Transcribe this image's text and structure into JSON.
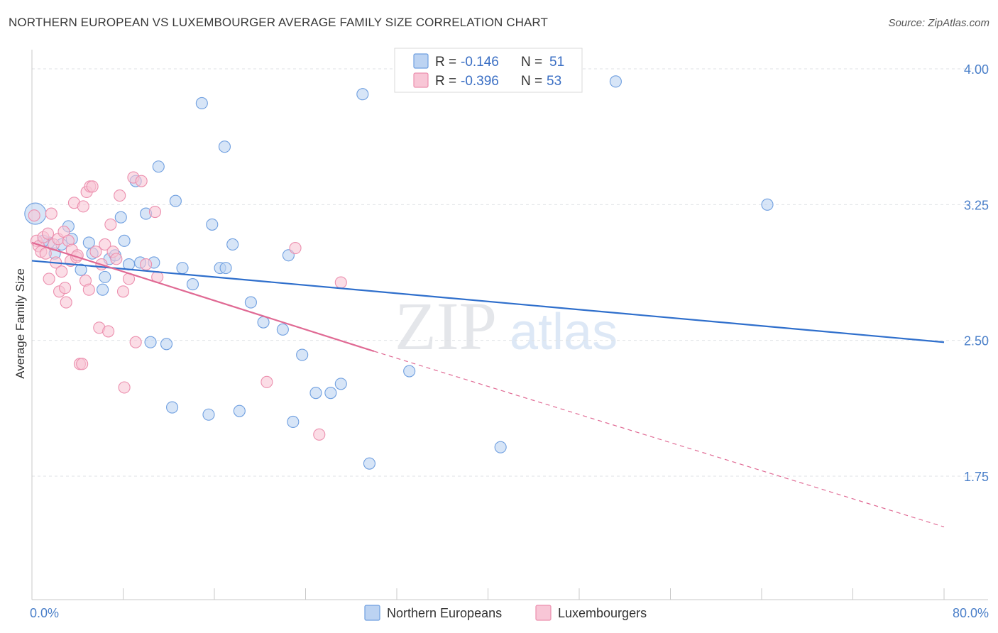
{
  "header": {
    "title": "NORTHERN EUROPEAN VS LUXEMBOURGER AVERAGE FAMILY SIZE CORRELATION CHART",
    "source": "Source: ZipAtlas.com"
  },
  "watermark": {
    "part1": "ZIP",
    "part2": "atlas"
  },
  "stats_box": {
    "rows": [
      {
        "r_label": "R =",
        "r_value": "-0.146",
        "n_label": "N =",
        "n_value": "51"
      },
      {
        "r_label": "R =",
        "r_value": "-0.396",
        "n_label": "N =",
        "n_value": "53"
      }
    ]
  },
  "chart_data": {
    "type": "scatter",
    "title": "NORTHERN EUROPEAN VS LUXEMBOURGER AVERAGE FAMILY SIZE CORRELATION CHART",
    "xlabel": "",
    "ylabel": "Average Family Size",
    "xlim": [
      0,
      80
    ],
    "ylim": [
      1.0,
      4.1
    ],
    "x_tick_labels": [
      {
        "value": 0,
        "label": "0.0%"
      },
      {
        "value": 80,
        "label": "80.0%"
      }
    ],
    "x_minor_ticks": [
      0,
      8,
      16,
      24,
      32,
      40,
      48,
      56,
      64,
      72,
      80
    ],
    "y_ticks": [
      {
        "value": 4.0,
        "label": "4.00"
      },
      {
        "value": 3.25,
        "label": "3.25"
      },
      {
        "value": 2.5,
        "label": "2.50"
      },
      {
        "value": 1.75,
        "label": "1.75"
      }
    ],
    "grid": true,
    "legend_position": "bottom-center",
    "series": [
      {
        "name": "Northern Europeans",
        "color": "#6f9fe0",
        "fill": "#bcd3f2",
        "trend_color": "#2f6fcc",
        "trend": {
          "x0": 0,
          "y0": 2.94,
          "x1": 80,
          "y1": 2.49
        },
        "points": [
          [
            0.3,
            3.2
          ],
          [
            1.5,
            3.04
          ],
          [
            2.0,
            2.98
          ],
          [
            3.2,
            3.13
          ],
          [
            3.5,
            3.06
          ],
          [
            5.0,
            3.04
          ],
          [
            5.3,
            2.98
          ],
          [
            6.2,
            2.78
          ],
          [
            6.4,
            2.85
          ],
          [
            6.8,
            2.95
          ],
          [
            7.3,
            2.97
          ],
          [
            7.8,
            3.18
          ],
          [
            8.1,
            3.05
          ],
          [
            8.5,
            2.92
          ],
          [
            9.1,
            3.38
          ],
          [
            10.0,
            3.2
          ],
          [
            10.4,
            2.49
          ],
          [
            10.7,
            2.93
          ],
          [
            11.1,
            3.46
          ],
          [
            11.8,
            2.48
          ],
          [
            12.3,
            2.13
          ],
          [
            12.6,
            3.27
          ],
          [
            13.2,
            2.9
          ],
          [
            14.1,
            2.81
          ],
          [
            14.9,
            3.81
          ],
          [
            15.5,
            2.09
          ],
          [
            15.8,
            3.14
          ],
          [
            16.5,
            2.9
          ],
          [
            16.9,
            3.57
          ],
          [
            17.6,
            3.03
          ],
          [
            18.2,
            2.11
          ],
          [
            19.2,
            2.71
          ],
          [
            20.3,
            2.6
          ],
          [
            22.0,
            2.56
          ],
          [
            22.5,
            2.97
          ],
          [
            22.9,
            2.05
          ],
          [
            23.7,
            2.42
          ],
          [
            24.9,
            2.21
          ],
          [
            26.2,
            2.21
          ],
          [
            27.1,
            2.26
          ],
          [
            29.0,
            3.86
          ],
          [
            29.6,
            1.82
          ],
          [
            33.1,
            2.33
          ],
          [
            41.1,
            1.91
          ],
          [
            51.2,
            3.93
          ],
          [
            64.5,
            3.25
          ],
          [
            1.0,
            3.05
          ],
          [
            2.6,
            3.03
          ],
          [
            4.3,
            2.89
          ],
          [
            9.5,
            2.93
          ],
          [
            17.0,
            2.9
          ]
        ]
      },
      {
        "name": "Luxembourgers",
        "color": "#ec8fae",
        "fill": "#f8c6d6",
        "trend_color": "#e06a94",
        "trend": {
          "x0": 0,
          "y0": 3.04,
          "x1": 30,
          "y1": 2.44
        },
        "trend_extension": {
          "x0": 30,
          "y0": 2.44,
          "x1": 80,
          "y1": 1.47
        },
        "points": [
          [
            0.2,
            3.19
          ],
          [
            0.4,
            3.05
          ],
          [
            0.6,
            3.02
          ],
          [
            0.8,
            2.99
          ],
          [
            1.0,
            3.07
          ],
          [
            1.2,
            2.98
          ],
          [
            1.4,
            3.09
          ],
          [
            1.5,
            2.84
          ],
          [
            1.7,
            3.2
          ],
          [
            1.9,
            3.03
          ],
          [
            2.1,
            2.93
          ],
          [
            2.3,
            3.06
          ],
          [
            2.4,
            2.77
          ],
          [
            2.6,
            2.88
          ],
          [
            2.8,
            3.1
          ],
          [
            2.9,
            2.79
          ],
          [
            3.0,
            2.71
          ],
          [
            3.2,
            3.05
          ],
          [
            3.4,
            2.94
          ],
          [
            3.5,
            3.0
          ],
          [
            3.7,
            3.26
          ],
          [
            3.9,
            2.96
          ],
          [
            4.0,
            2.97
          ],
          [
            4.2,
            2.37
          ],
          [
            4.4,
            2.37
          ],
          [
            4.5,
            3.24
          ],
          [
            4.7,
            2.83
          ],
          [
            4.8,
            3.32
          ],
          [
            5.0,
            2.78
          ],
          [
            5.1,
            3.35
          ],
          [
            5.3,
            3.35
          ],
          [
            5.6,
            2.99
          ],
          [
            5.9,
            2.57
          ],
          [
            6.1,
            2.92
          ],
          [
            6.4,
            3.03
          ],
          [
            6.7,
            2.55
          ],
          [
            6.9,
            3.14
          ],
          [
            7.1,
            2.99
          ],
          [
            7.4,
            2.95
          ],
          [
            7.7,
            3.3
          ],
          [
            8.0,
            2.77
          ],
          [
            8.1,
            2.24
          ],
          [
            8.5,
            2.84
          ],
          [
            8.9,
            3.4
          ],
          [
            9.1,
            2.49
          ],
          [
            9.6,
            3.38
          ],
          [
            10.0,
            2.92
          ],
          [
            10.8,
            3.21
          ],
          [
            11.0,
            2.85
          ],
          [
            20.6,
            2.27
          ],
          [
            23.1,
            3.01
          ],
          [
            25.2,
            1.98
          ],
          [
            27.1,
            2.82
          ]
        ]
      }
    ]
  }
}
